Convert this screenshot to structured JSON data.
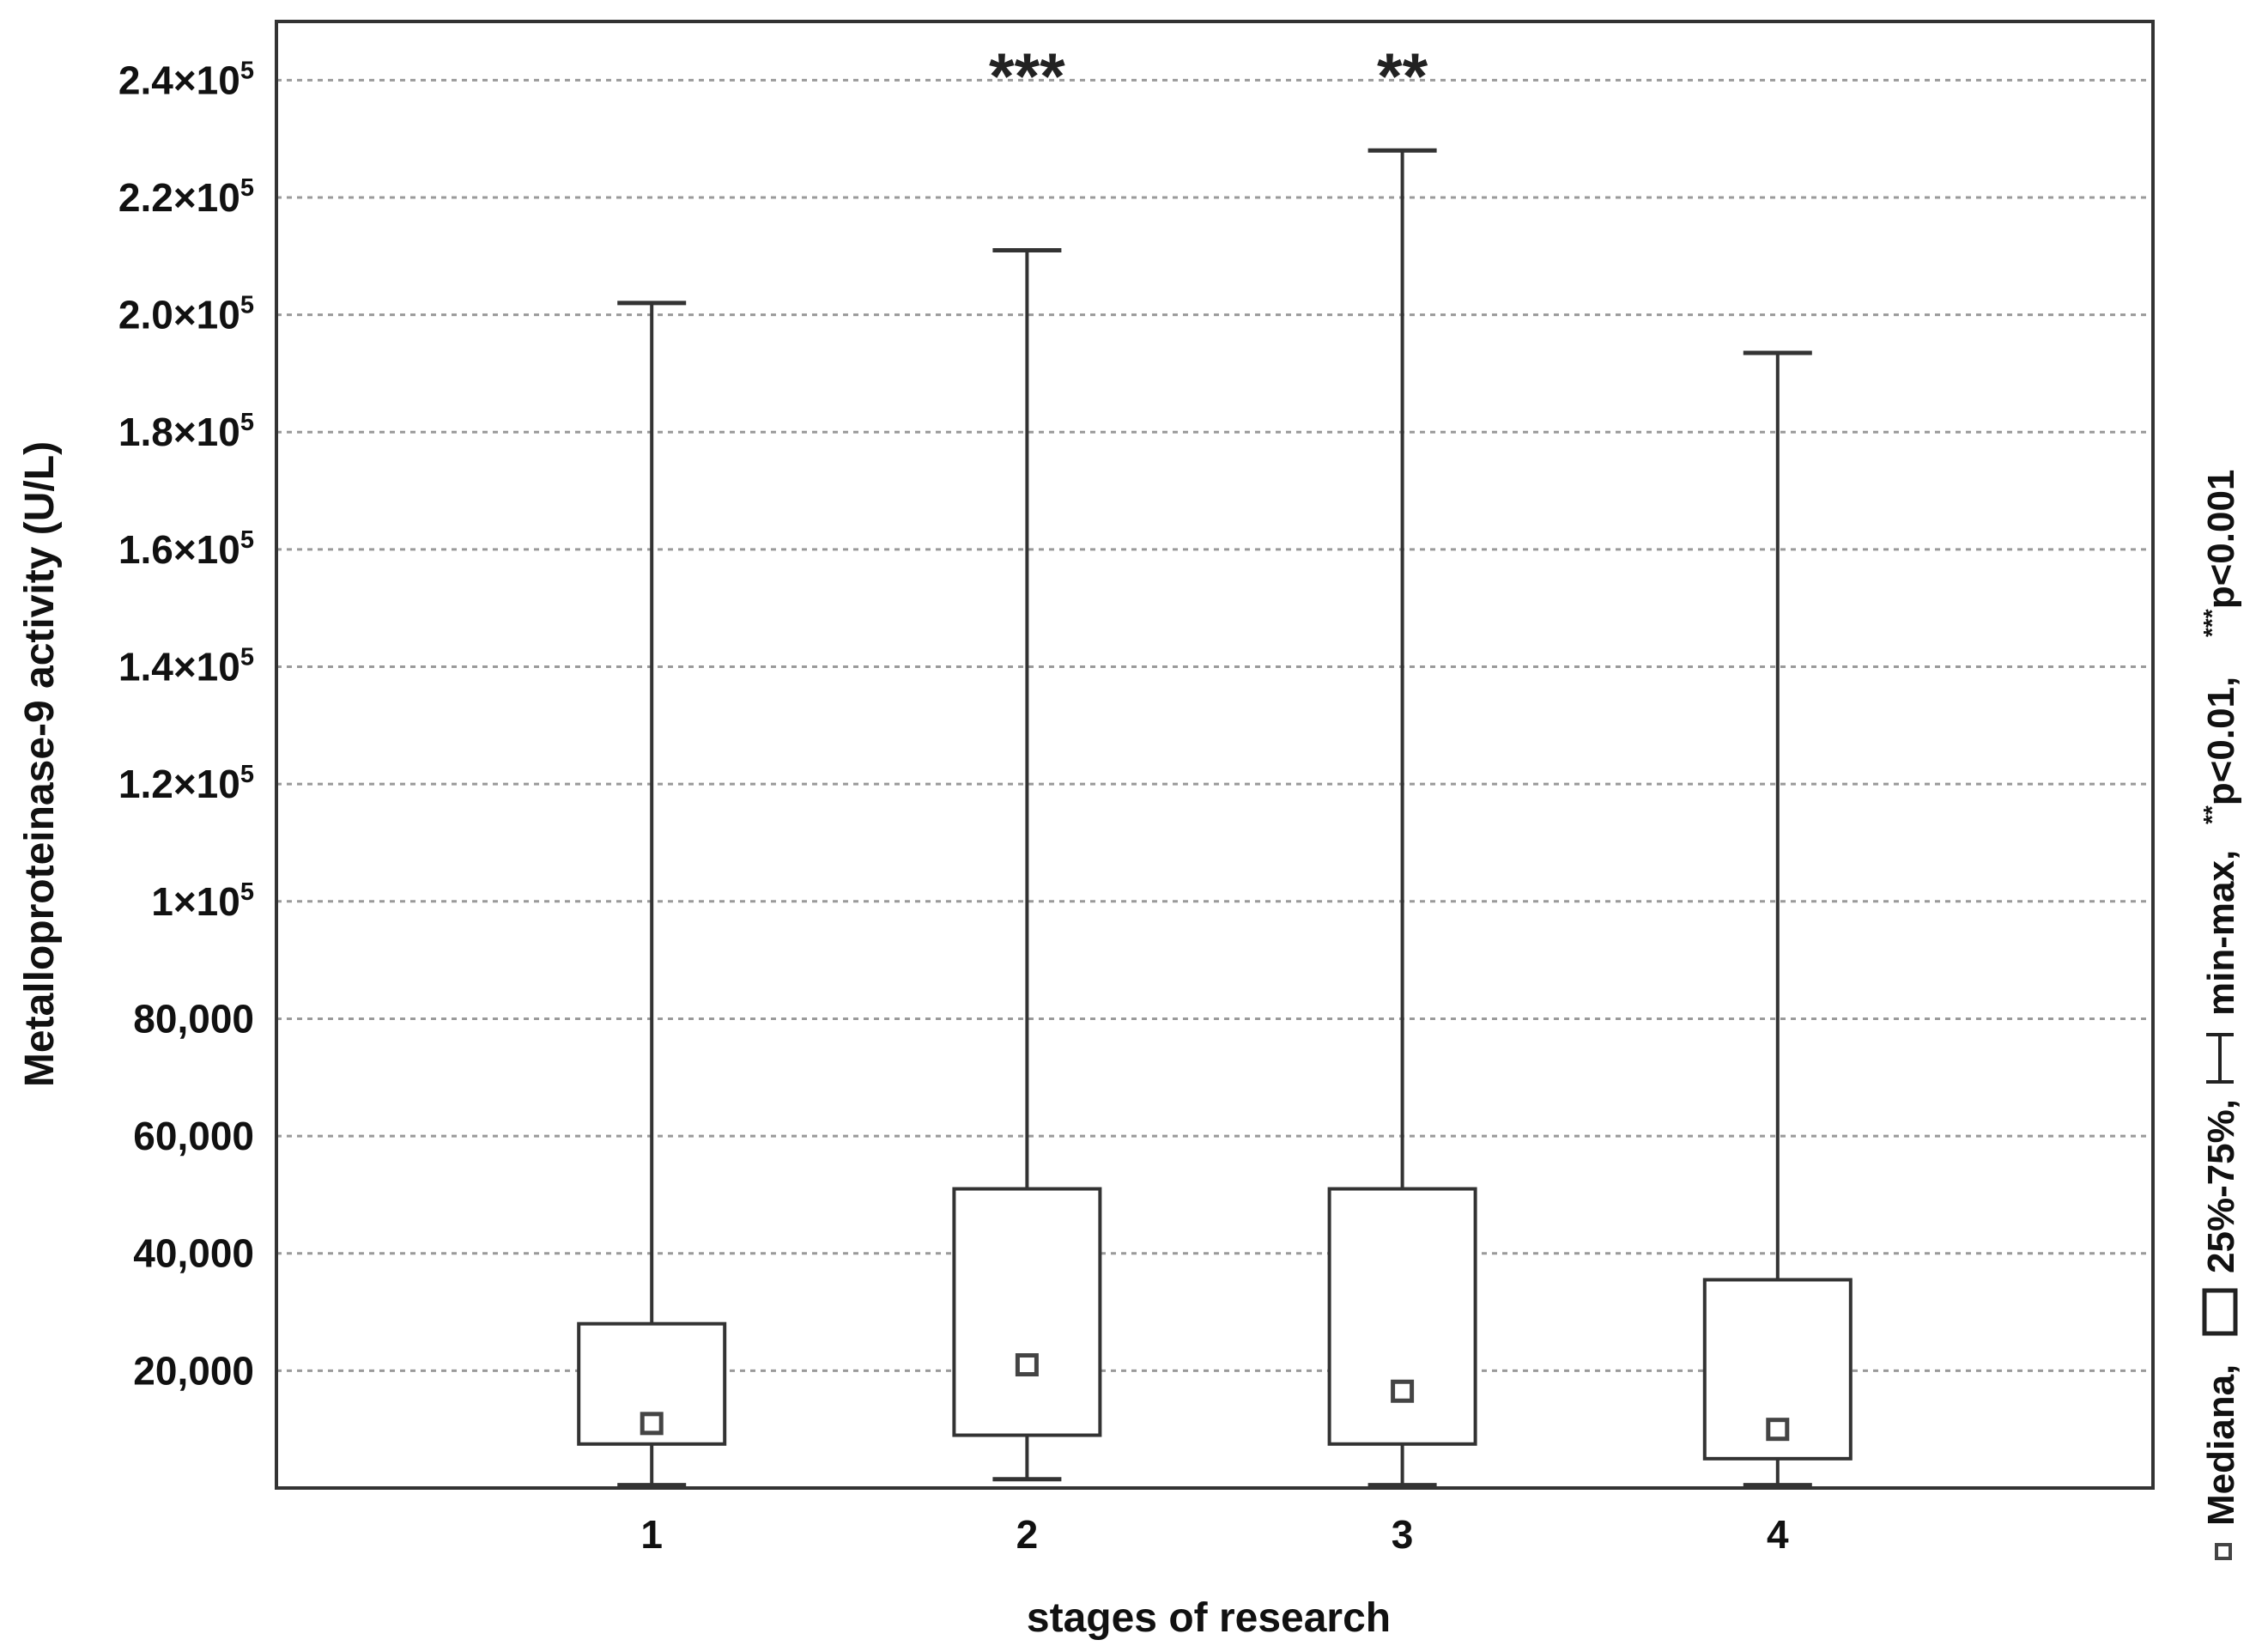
{
  "chart_data": {
    "type": "boxplot",
    "xlabel": "stages of research",
    "ylabel": "Metalloproteinase-9 activity (U/L)",
    "categories": [
      "1",
      "2",
      "3",
      "4"
    ],
    "series": [
      {
        "category": "1",
        "min": 500,
        "q1": 7500,
        "median": 11000,
        "q3": 28000,
        "max": 202000,
        "significance": ""
      },
      {
        "category": "2",
        "min": 1500,
        "q1": 9000,
        "median": 21000,
        "q3": 51000,
        "max": 211000,
        "significance": "***"
      },
      {
        "category": "3",
        "min": 500,
        "q1": 7500,
        "median": 16500,
        "q3": 51000,
        "max": 228000,
        "significance": "**"
      },
      {
        "category": "4",
        "min": 500,
        "q1": 5000,
        "median": 10000,
        "q3": 35500,
        "max": 193500,
        "significance": ""
      }
    ],
    "ylim": [
      0,
      250000
    ],
    "x_range": [
      0,
      5
    ],
    "y_ticks": [
      {
        "value": 20000,
        "text": "20,000",
        "exp": ""
      },
      {
        "value": 40000,
        "text": "40,000",
        "exp": ""
      },
      {
        "value": 60000,
        "text": "60,000",
        "exp": ""
      },
      {
        "value": 80000,
        "text": "80,000",
        "exp": ""
      },
      {
        "value": 100000,
        "text": "1×10",
        "exp": "5"
      },
      {
        "value": 120000,
        "text": "1.2×10",
        "exp": "5"
      },
      {
        "value": 140000,
        "text": "1.4×10",
        "exp": "5"
      },
      {
        "value": 160000,
        "text": "1.6×10",
        "exp": "5"
      },
      {
        "value": 180000,
        "text": "1.8×10",
        "exp": "5"
      },
      {
        "value": 200000,
        "text": "2.0×10",
        "exp": "5"
      },
      {
        "value": 220000,
        "text": "2.2×10",
        "exp": "5"
      },
      {
        "value": 240000,
        "text": "2.4×10",
        "exp": "5"
      }
    ],
    "grid": true,
    "legend": {
      "placement": "right, vertical",
      "items": [
        {
          "text": "Mediana,",
          "sup": ""
        },
        {
          "text": "25%-75%,",
          "sup": ""
        },
        {
          "text": "min-max,",
          "sup": ""
        },
        {
          "text": "p<0.01,",
          "sup": "**"
        },
        {
          "text": "p<0.001",
          "sup": "***"
        }
      ]
    },
    "colors": {
      "box": "#333333",
      "grid": "#9a9a9a",
      "frame": "#333333",
      "median_marker": "#444444"
    }
  }
}
